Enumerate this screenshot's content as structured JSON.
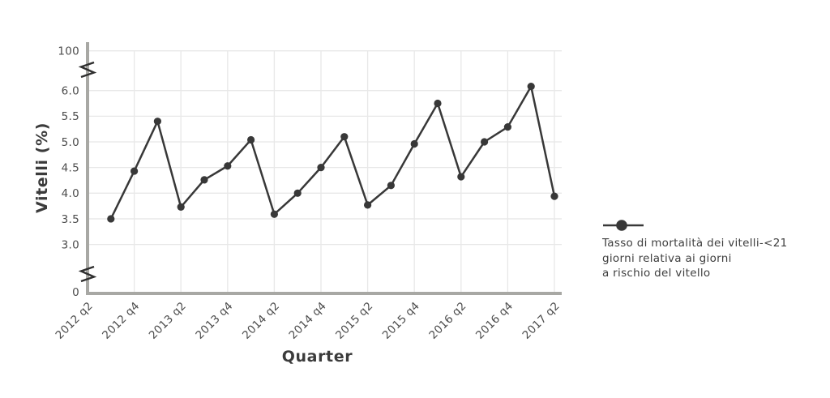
{
  "chart_data": {
    "type": "line",
    "title": "",
    "xlabel": "Quarter",
    "ylabel": "Vitelli (%)",
    "x_tick_labels": [
      "2012 q2",
      "2012 q4",
      "2013 q2",
      "2013 q4",
      "2014 q2",
      "2014 q4",
      "2015 q2",
      "2015 q4",
      "2016 q2",
      "2016 q4",
      "2017 q2"
    ],
    "y_tick_labels": [
      "100",
      "6.0",
      "5.5",
      "5.0",
      "4.5",
      "4.0",
      "3.5",
      "3.0",
      "0"
    ],
    "y_axis_breaks": [
      "between 0 and 3.0",
      "between 6.0 and 100"
    ],
    "grid": true,
    "legend_position": "right",
    "series": [
      {
        "name": "Tasso di mortalità dei vitelli-<21 giorni relativa ai giorni a rischio del vitello",
        "x": [
          "2012 q3",
          "2012 q4",
          "2013 q1",
          "2013 q2",
          "2013 q3",
          "2013 q4",
          "2014 q1",
          "2014 q2",
          "2014 q3",
          "2014 q4",
          "2015 q1",
          "2015 q2",
          "2015 q3",
          "2015 q4",
          "2016 q1",
          "2016 q2",
          "2016 q3",
          "2016 q4",
          "2017 q1",
          "2017 q2"
        ],
        "values": [
          3.5,
          4.43,
          5.4,
          3.73,
          4.26,
          4.53,
          5.04,
          3.59,
          4.0,
          4.5,
          5.1,
          3.77,
          4.15,
          4.96,
          5.75,
          4.32,
          5.0,
          5.29,
          6.08,
          3.94
        ]
      }
    ],
    "ylim_visible_band": [
      3.0,
      6.0
    ]
  },
  "legend": {
    "lines": [
      "Tasso di mortalità dei vitelli-<21",
      "giorni relativa ai giorni",
      "a rischio del vitello"
    ]
  },
  "colors": {
    "series": "#383838",
    "axis": "#a8a8a4",
    "grid": "#e8e8e8",
    "break_mark": "#2f2f2f",
    "tick_text": "#4c4c4c",
    "title_text": "#3b3b3b"
  }
}
